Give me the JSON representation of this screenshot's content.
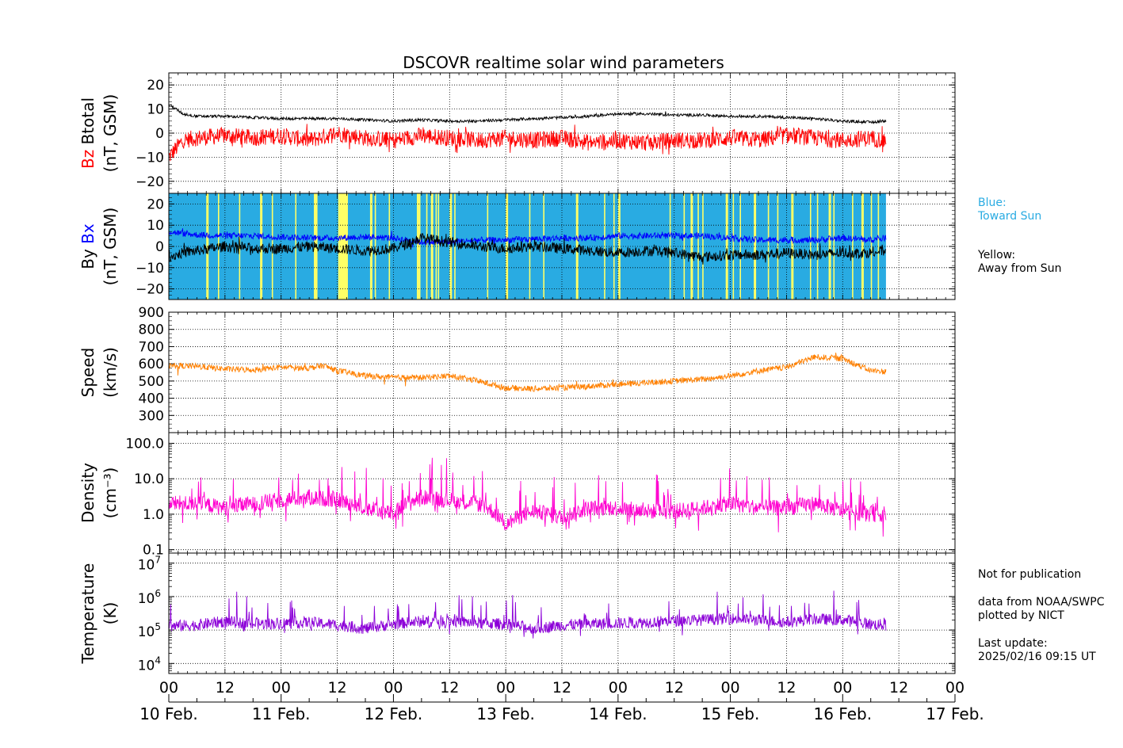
{
  "title": "DSCOVR realtime solar wind parameters",
  "colors": {
    "bz": "#ff0000",
    "btotal": "#000000",
    "bx": "#0000ff",
    "by": "#000000",
    "speed": "#ff8000",
    "density": "#ff00d0",
    "temperature": "#8c00d8",
    "toward_sun": "#29abe2",
    "away_from_sun": "#ffff66"
  },
  "side_notes": {
    "blue_1": "Blue:",
    "blue_2": "Toward Sun",
    "yellow_1": "Yellow:",
    "yellow_2": "Away from Sun",
    "not_pub": "Not for publication",
    "data_from": "data from NOAA/SWPC",
    "plotted_by": "plotted by NICT",
    "last_update_label": "Last update:",
    "last_update_value": "2025/02/16 09:15 UT"
  },
  "chart_data": [
    {
      "type": "line",
      "panel": "btotal-bz",
      "ylabel_parts": [
        "Bz",
        "Btotal"
      ],
      "ylabel_units": "(nT, GSM)",
      "ylim": [
        -25,
        25
      ],
      "yticks": [
        -20,
        -10,
        0,
        10,
        20
      ],
      "ytick_labels": [
        "−20",
        "−10",
        "0",
        "10",
        "20"
      ],
      "grid": true,
      "series": [
        {
          "name": "Btotal",
          "x": [
            0,
            3,
            6,
            12,
            18,
            24,
            30,
            36,
            42,
            48,
            54,
            60,
            66,
            72,
            78,
            84,
            90,
            96,
            102,
            108,
            114,
            120,
            126,
            132,
            138,
            144,
            150,
            153
          ],
          "values": [
            12,
            8,
            7,
            7,
            6.5,
            6,
            6,
            6,
            5.5,
            5,
            5.5,
            5,
            5,
            5.5,
            6,
            6.5,
            7,
            8,
            8,
            7.5,
            7.5,
            7,
            7,
            6.5,
            6,
            5,
            4.5,
            5
          ]
        },
        {
          "name": "Bz",
          "x": [
            0,
            3,
            6,
            12,
            18,
            24,
            30,
            36,
            42,
            48,
            54,
            60,
            66,
            72,
            78,
            84,
            90,
            96,
            102,
            108,
            114,
            120,
            126,
            132,
            138,
            144,
            150,
            153
          ],
          "values": [
            -10,
            -3,
            -2,
            -1,
            -2,
            -1,
            -3,
            0,
            -2,
            -3,
            -1,
            -2,
            -3,
            -2,
            -3,
            -2,
            -4,
            -3,
            -4,
            -3,
            -3,
            -2,
            -3,
            -1,
            -2,
            -3,
            -2,
            -3
          ]
        }
      ]
    },
    {
      "type": "line",
      "panel": "bx-by",
      "ylabel_parts": [
        "By",
        "Bx"
      ],
      "ylabel_units": "(nT, GSM)",
      "ylim": [
        -25,
        25
      ],
      "yticks": [
        -20,
        -10,
        0,
        10,
        20
      ],
      "ytick_labels": [
        "−20",
        "−10",
        "0",
        "10",
        "20"
      ],
      "grid": true,
      "away_from_sun_hours": [
        8,
        10.5,
        15,
        19.5,
        22,
        27,
        31,
        31.5,
        38,
        43,
        44,
        47,
        53,
        53.5,
        55,
        56,
        57,
        57.5,
        60,
        61,
        68,
        72,
        77,
        80,
        87,
        93,
        95,
        96,
        107,
        110,
        111.5,
        113,
        114,
        119,
        120.5,
        122,
        125,
        128,
        130,
        133,
        137,
        138.5,
        141,
        142,
        146,
        148,
        150,
        151.5
      ],
      "series": [
        {
          "name": "Bx",
          "x": [
            0,
            3,
            6,
            12,
            18,
            24,
            30,
            36,
            42,
            48,
            54,
            60,
            66,
            72,
            78,
            84,
            90,
            96,
            102,
            108,
            114,
            120,
            126,
            132,
            138,
            144,
            150,
            153
          ],
          "values": [
            7,
            6,
            5.5,
            5,
            5,
            4.5,
            4,
            4,
            4.5,
            4,
            2,
            2,
            3,
            3,
            3.5,
            4,
            4,
            5,
            5,
            5,
            5,
            4,
            3,
            3,
            3,
            4,
            3,
            4
          ]
        },
        {
          "name": "By",
          "x": [
            0,
            3,
            6,
            12,
            18,
            24,
            30,
            36,
            42,
            48,
            54,
            60,
            66,
            72,
            78,
            84,
            90,
            96,
            102,
            108,
            114,
            120,
            126,
            132,
            138,
            144,
            150,
            153
          ],
          "values": [
            -5,
            -3,
            -2,
            0,
            -1,
            -1,
            0,
            -1,
            -2,
            -1,
            4,
            2,
            0,
            -1,
            0,
            -1,
            -2,
            -3,
            -2,
            -3,
            -5,
            -4,
            -4,
            -3,
            -4,
            -3,
            -3,
            -2
          ]
        }
      ]
    },
    {
      "type": "line",
      "panel": "speed",
      "ylabel": "Speed",
      "ylabel_units": "(km/s)",
      "ylim": [
        200,
        900
      ],
      "yticks": [
        300,
        400,
        500,
        600,
        700,
        800,
        900
      ],
      "ytick_labels": [
        "300",
        "400",
        "500",
        "600",
        "700",
        "800",
        "900"
      ],
      "grid": true,
      "series": [
        {
          "name": "Speed",
          "x": [
            0,
            6,
            12,
            18,
            24,
            30,
            33,
            36,
            42,
            48,
            54,
            60,
            66,
            72,
            78,
            84,
            90,
            96,
            102,
            108,
            114,
            120,
            126,
            132,
            138,
            144,
            150,
            153
          ],
          "values": [
            590,
            585,
            570,
            565,
            580,
            575,
            590,
            560,
            530,
            520,
            520,
            530,
            500,
            460,
            455,
            460,
            470,
            480,
            490,
            500,
            510,
            530,
            560,
            580,
            640,
            630,
            560,
            555
          ]
        }
      ]
    },
    {
      "type": "line",
      "panel": "density",
      "ylabel": "Density",
      "ylabel_units": "(cm⁻³)",
      "yscale": "log",
      "ylim": [
        0.08,
        200
      ],
      "yticks": [
        0.1,
        1.0,
        10.0,
        100.0
      ],
      "ytick_labels": [
        "0.1",
        "1.0",
        "10.0",
        "100.0"
      ],
      "grid": true,
      "series": [
        {
          "name": "Density",
          "x": [
            0,
            6,
            12,
            18,
            24,
            30,
            36,
            42,
            48,
            54,
            60,
            66,
            72,
            78,
            84,
            90,
            96,
            102,
            108,
            114,
            120,
            126,
            132,
            138,
            144,
            150,
            153
          ],
          "values": [
            2,
            2,
            1.5,
            2,
            2.5,
            3,
            2.5,
            1.5,
            1,
            3,
            2.5,
            2,
            0.5,
            1.2,
            0.8,
            1.5,
            1.5,
            1.2,
            1.2,
            1.5,
            2,
            1.5,
            1.5,
            2,
            1.2,
            1,
            1
          ]
        }
      ]
    },
    {
      "type": "line",
      "panel": "temperature",
      "ylabel": "Temperature",
      "ylabel_units": "(K)",
      "yscale": "log",
      "ylim": [
        5000,
        20000000
      ],
      "yticks": [
        10000,
        100000,
        1000000,
        10000000
      ],
      "ytick_exponents": [
        "4",
        "5",
        "6",
        "7"
      ],
      "grid": true,
      "series": [
        {
          "name": "Temperature",
          "x": [
            0,
            6,
            12,
            18,
            24,
            30,
            36,
            42,
            48,
            54,
            60,
            66,
            72,
            78,
            84,
            90,
            96,
            102,
            108,
            114,
            120,
            126,
            132,
            138,
            144,
            150,
            153
          ],
          "values": [
            130000,
            140000,
            180000,
            150000,
            160000,
            170000,
            140000,
            110000,
            150000,
            180000,
            190000,
            160000,
            150000,
            110000,
            140000,
            150000,
            160000,
            170000,
            190000,
            200000,
            220000,
            200000,
            170000,
            210000,
            200000,
            150000,
            140000
          ]
        }
      ]
    }
  ],
  "x_axis": {
    "xlim_hours": [
      0,
      168
    ],
    "hour_labels": [
      "00",
      "12",
      "00",
      "12",
      "00",
      "12",
      "00",
      "12",
      "00",
      "12",
      "00",
      "12",
      "00",
      "12",
      "00"
    ],
    "day_labels": [
      "10 Feb.",
      "11 Feb.",
      "12 Feb.",
      "13 Feb.",
      "14 Feb.",
      "15 Feb.",
      "16 Feb.",
      "17 Feb."
    ],
    "data_end_hour": 153.25
  }
}
